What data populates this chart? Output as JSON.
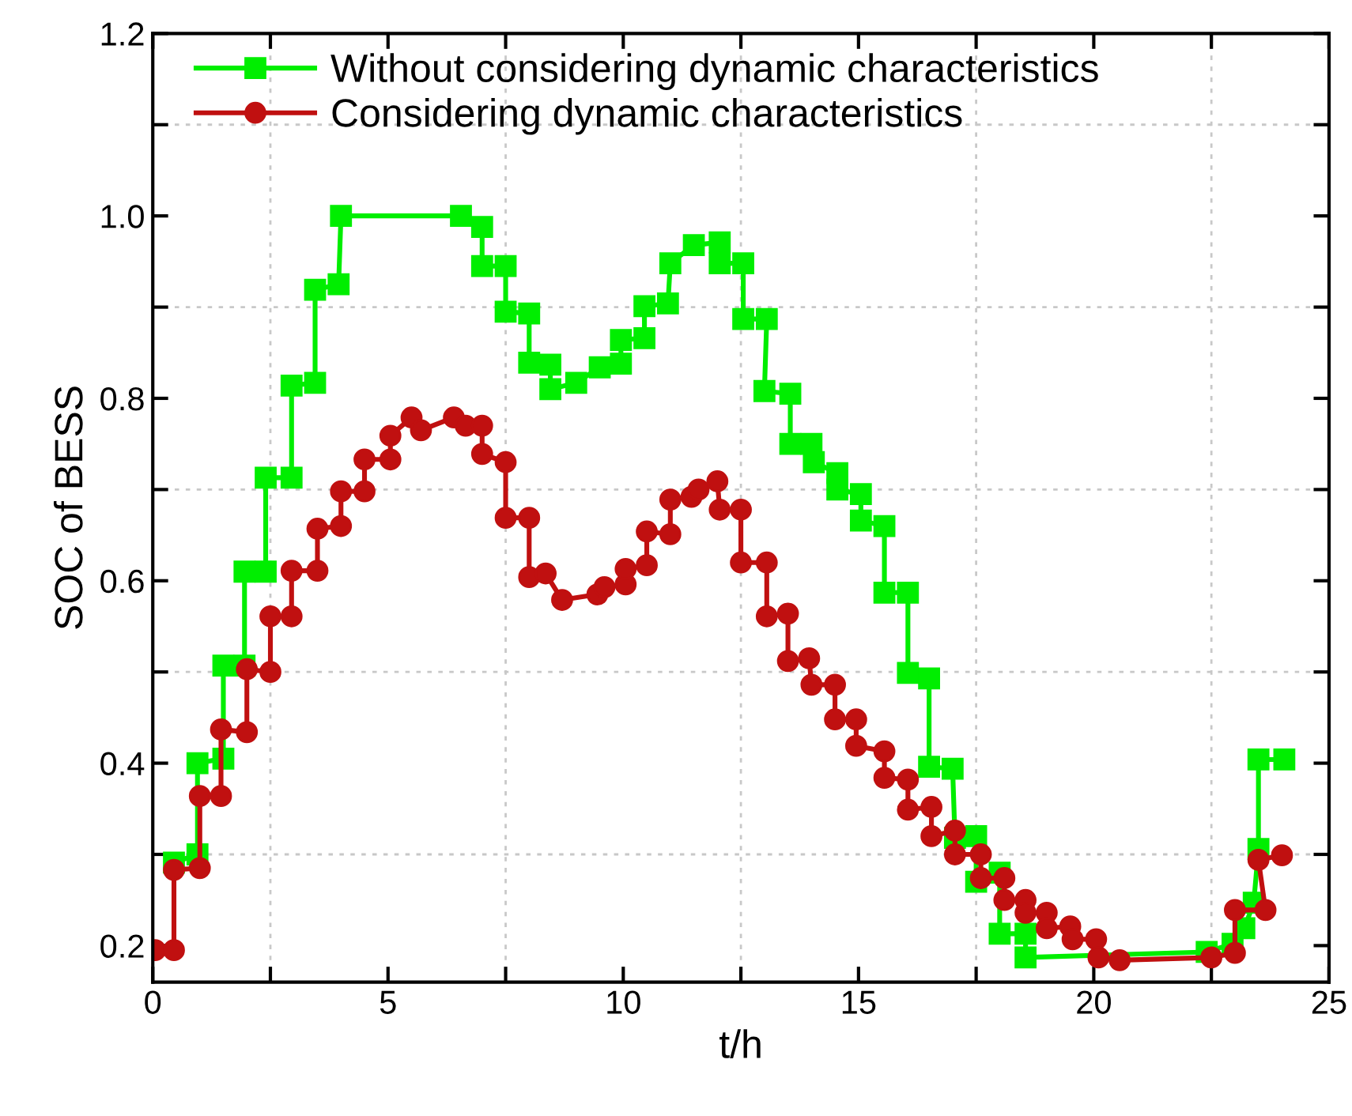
{
  "chart_data": {
    "type": "line",
    "xlabel": "t/h",
    "ylabel": "SOC of BESS",
    "xlim": [
      0,
      25
    ],
    "ylim": [
      0.16,
      1.2
    ],
    "xticks": [
      0,
      {
        "value": 2.5,
        "label": null
      },
      5,
      {
        "value": 7.5,
        "label": null
      },
      10,
      {
        "value": 12.5,
        "label": null
      },
      15,
      {
        "value": 17.5,
        "label": null
      },
      20,
      {
        "value": 22.5,
        "label": null
      },
      25
    ],
    "yticks": [
      0.2,
      {
        "value": 0.3,
        "label": null
      },
      0.4,
      {
        "value": 0.5,
        "label": null
      },
      0.6,
      {
        "value": 0.7,
        "label": null
      },
      0.8,
      {
        "value": 0.9,
        "label": null
      },
      {
        "value": 1.0,
        "label": "1.0"
      },
      {
        "value": 1.1,
        "label": null
      },
      1.2
    ],
    "grid": true,
    "legend": "top left",
    "series": [
      {
        "name": "Without considering dynamic characteristics",
        "color": "#00ee00",
        "marker": "square",
        "x": [
          0.45,
          0.95,
          0.95,
          1.5,
          1.5,
          1.95,
          1.95,
          2.4,
          2.4,
          2.95,
          2.95,
          3.45,
          3.45,
          3.95,
          4.0,
          6.55,
          7.0,
          7.0,
          7.5,
          7.5,
          8.0,
          8.0,
          8.45,
          8.45,
          9.0,
          9.5,
          9.95,
          9.95,
          10.45,
          10.45,
          10.95,
          11.0,
          11.5,
          12.05,
          12.05,
          12.55,
          12.55,
          13.05,
          13.0,
          13.55,
          13.55,
          14.0,
          14.05,
          14.55,
          14.55,
          15.05,
          15.05,
          15.55,
          15.55,
          16.05,
          16.05,
          16.5,
          16.5,
          17.0,
          17.05,
          17.5,
          17.5,
          18.0,
          18.0,
          18.55,
          18.55,
          22.4,
          22.95,
          23.2,
          23.4,
          23.5,
          23.5,
          24.05
        ],
        "values": [
          0.291,
          0.3,
          0.4,
          0.405,
          0.507,
          0.507,
          0.61,
          0.61,
          0.713,
          0.713,
          0.814,
          0.817,
          0.919,
          0.925,
          1.0,
          1.0,
          0.988,
          0.945,
          0.945,
          0.895,
          0.893,
          0.839,
          0.837,
          0.81,
          0.817,
          0.834,
          0.838,
          0.864,
          0.866,
          0.901,
          0.904,
          0.948,
          0.968,
          0.971,
          0.948,
          0.948,
          0.887,
          0.887,
          0.808,
          0.805,
          0.75,
          0.75,
          0.73,
          0.718,
          0.7,
          0.695,
          0.666,
          0.66,
          0.587,
          0.587,
          0.499,
          0.493,
          0.396,
          0.394,
          0.318,
          0.32,
          0.27,
          0.28,
          0.213,
          0.213,
          0.187,
          0.193,
          0.202,
          0.219,
          0.247,
          0.306,
          0.404,
          0.404
        ]
      },
      {
        "name": "Considering dynamic characteristics",
        "color": "#c01010",
        "marker": "circle",
        "x": [
          0.05,
          0.45,
          0.45,
          1.0,
          1.0,
          1.45,
          1.45,
          2.0,
          2.0,
          2.5,
          2.5,
          2.95,
          2.95,
          3.5,
          3.5,
          4.0,
          4.0,
          4.5,
          4.5,
          5.05,
          5.05,
          5.5,
          5.7,
          6.4,
          6.65,
          7.0,
          7.0,
          7.5,
          7.5,
          8.0,
          8.0,
          8.35,
          8.7,
          9.45,
          9.6,
          10.05,
          10.05,
          10.5,
          10.5,
          11.0,
          11.0,
          11.45,
          11.6,
          12.0,
          12.05,
          12.5,
          12.5,
          13.05,
          13.05,
          13.5,
          13.5,
          13.95,
          14.0,
          14.5,
          14.5,
          14.95,
          14.95,
          15.55,
          15.55,
          16.05,
          16.05,
          16.55,
          16.55,
          17.05,
          17.05,
          17.6,
          17.6,
          18.1,
          18.1,
          18.55,
          18.55,
          19.0,
          19.0,
          19.5,
          19.55,
          20.05,
          20.1,
          20.55,
          22.5,
          23.0,
          23.0,
          23.65,
          23.5,
          24.0
        ],
        "values": [
          0.195,
          0.195,
          0.283,
          0.285,
          0.364,
          0.364,
          0.437,
          0.434,
          0.503,
          0.5,
          0.561,
          0.561,
          0.611,
          0.611,
          0.657,
          0.66,
          0.698,
          0.698,
          0.733,
          0.733,
          0.759,
          0.779,
          0.765,
          0.779,
          0.77,
          0.77,
          0.739,
          0.73,
          0.669,
          0.669,
          0.604,
          0.608,
          0.579,
          0.585,
          0.593,
          0.596,
          0.613,
          0.617,
          0.654,
          0.651,
          0.689,
          0.692,
          0.7,
          0.709,
          0.678,
          0.678,
          0.62,
          0.62,
          0.561,
          0.564,
          0.512,
          0.515,
          0.486,
          0.486,
          0.448,
          0.448,
          0.419,
          0.413,
          0.384,
          0.382,
          0.349,
          0.352,
          0.32,
          0.326,
          0.3,
          0.3,
          0.274,
          0.274,
          0.25,
          0.25,
          0.236,
          0.236,
          0.219,
          0.221,
          0.207,
          0.207,
          0.187,
          0.184,
          0.187,
          0.192,
          0.239,
          0.239,
          0.294,
          0.299
        ]
      }
    ]
  }
}
